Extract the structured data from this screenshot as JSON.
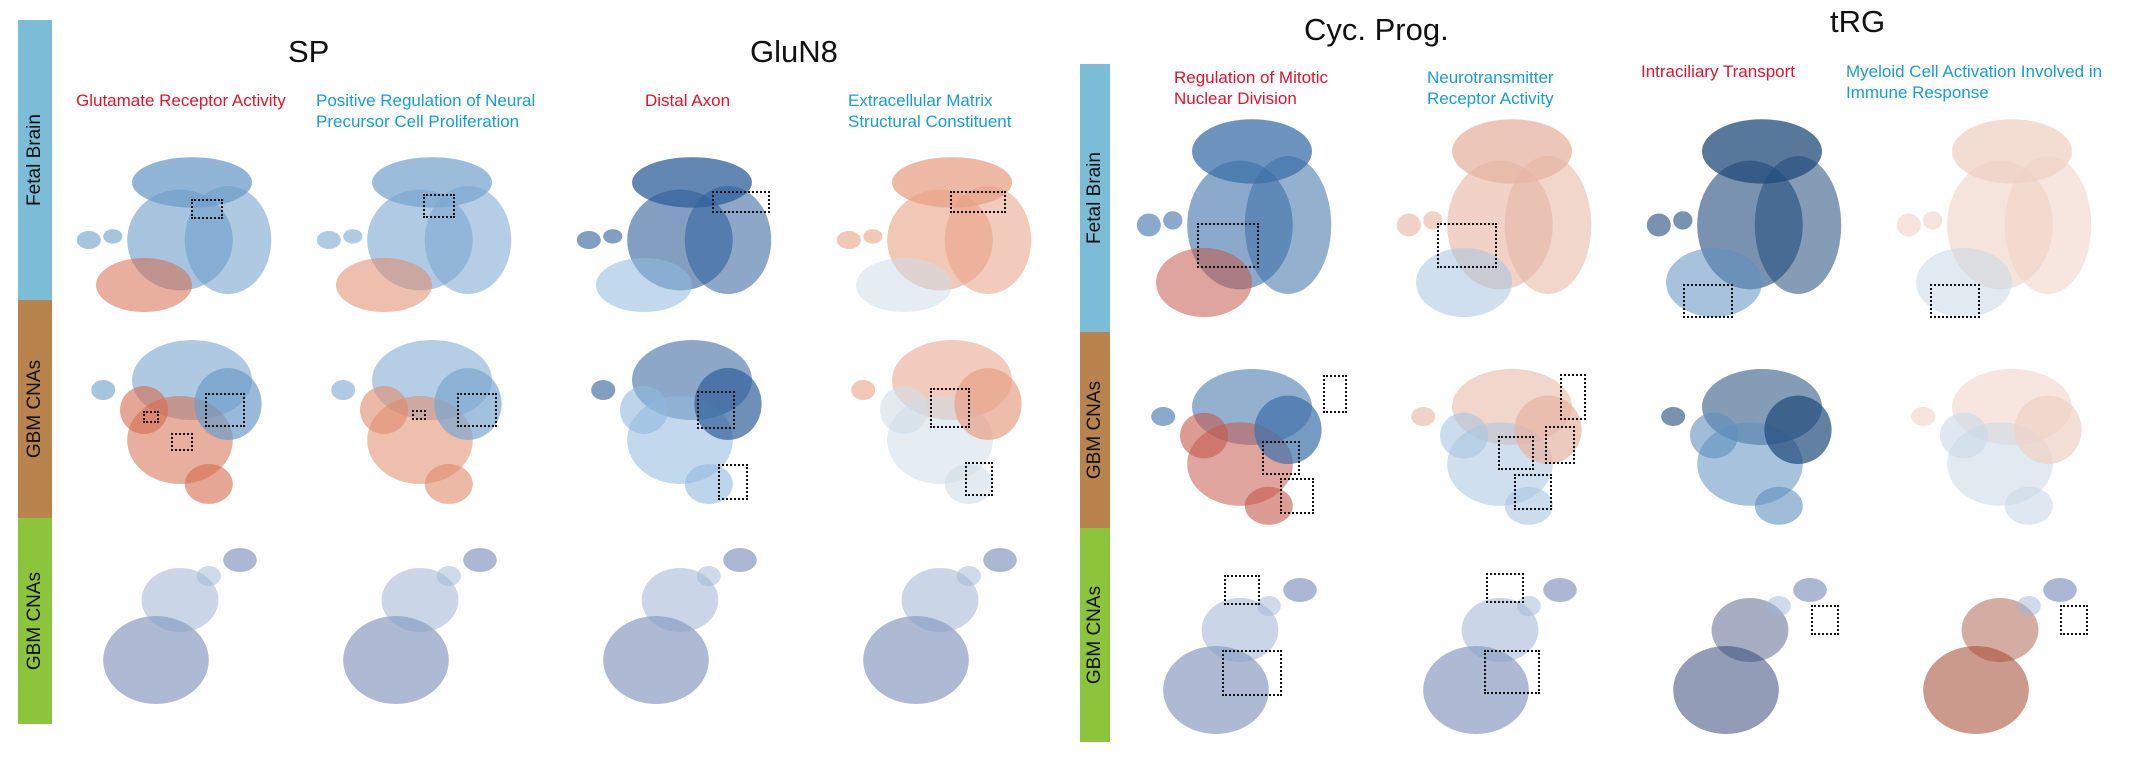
{
  "groups": [
    {
      "title": "SP"
    },
    {
      "title": "GluN8"
    },
    {
      "title": "Cyc. Prog."
    },
    {
      "title": "tRG"
    }
  ],
  "columns": [
    {
      "label": "Glutamate Receptor Activity",
      "color": "red"
    },
    {
      "label": "Positive Regulation of Neural\nPrecursor Cell Proliferation",
      "color": "blue"
    },
    {
      "label": "Distal Axon",
      "color": "red"
    },
    {
      "label": "Extracellular Matrix\nStructural Constituent",
      "color": "blue"
    },
    {
      "label": "Regulation of Mitotic\nNuclear Division",
      "color": "red"
    },
    {
      "label": "Neurotransmitter\nReceptor Activity",
      "color": "blue"
    },
    {
      "label": "Intraciliary Transport",
      "color": "red"
    },
    {
      "label": "Myeloid Cell Activation Involved in\nImmune Response",
      "color": "blue"
    }
  ],
  "row_labels": {
    "left": [
      "Fetal Brain",
      "GBM CNAs",
      "GBM CNAs"
    ],
    "right": [
      "Fetal Brain",
      "GBM CNAs",
      "GBM CNAs"
    ]
  },
  "colors": {
    "fetal": "#7bbcd6",
    "gbm": "#b8834c",
    "gbm2": "#8cc43c",
    "red_text": "#e0142c",
    "blue_text": "#1a9bd8",
    "score_high": "#b2182b",
    "score_low": "#2166ac",
    "score_mid": "#f7f7f7"
  }
}
